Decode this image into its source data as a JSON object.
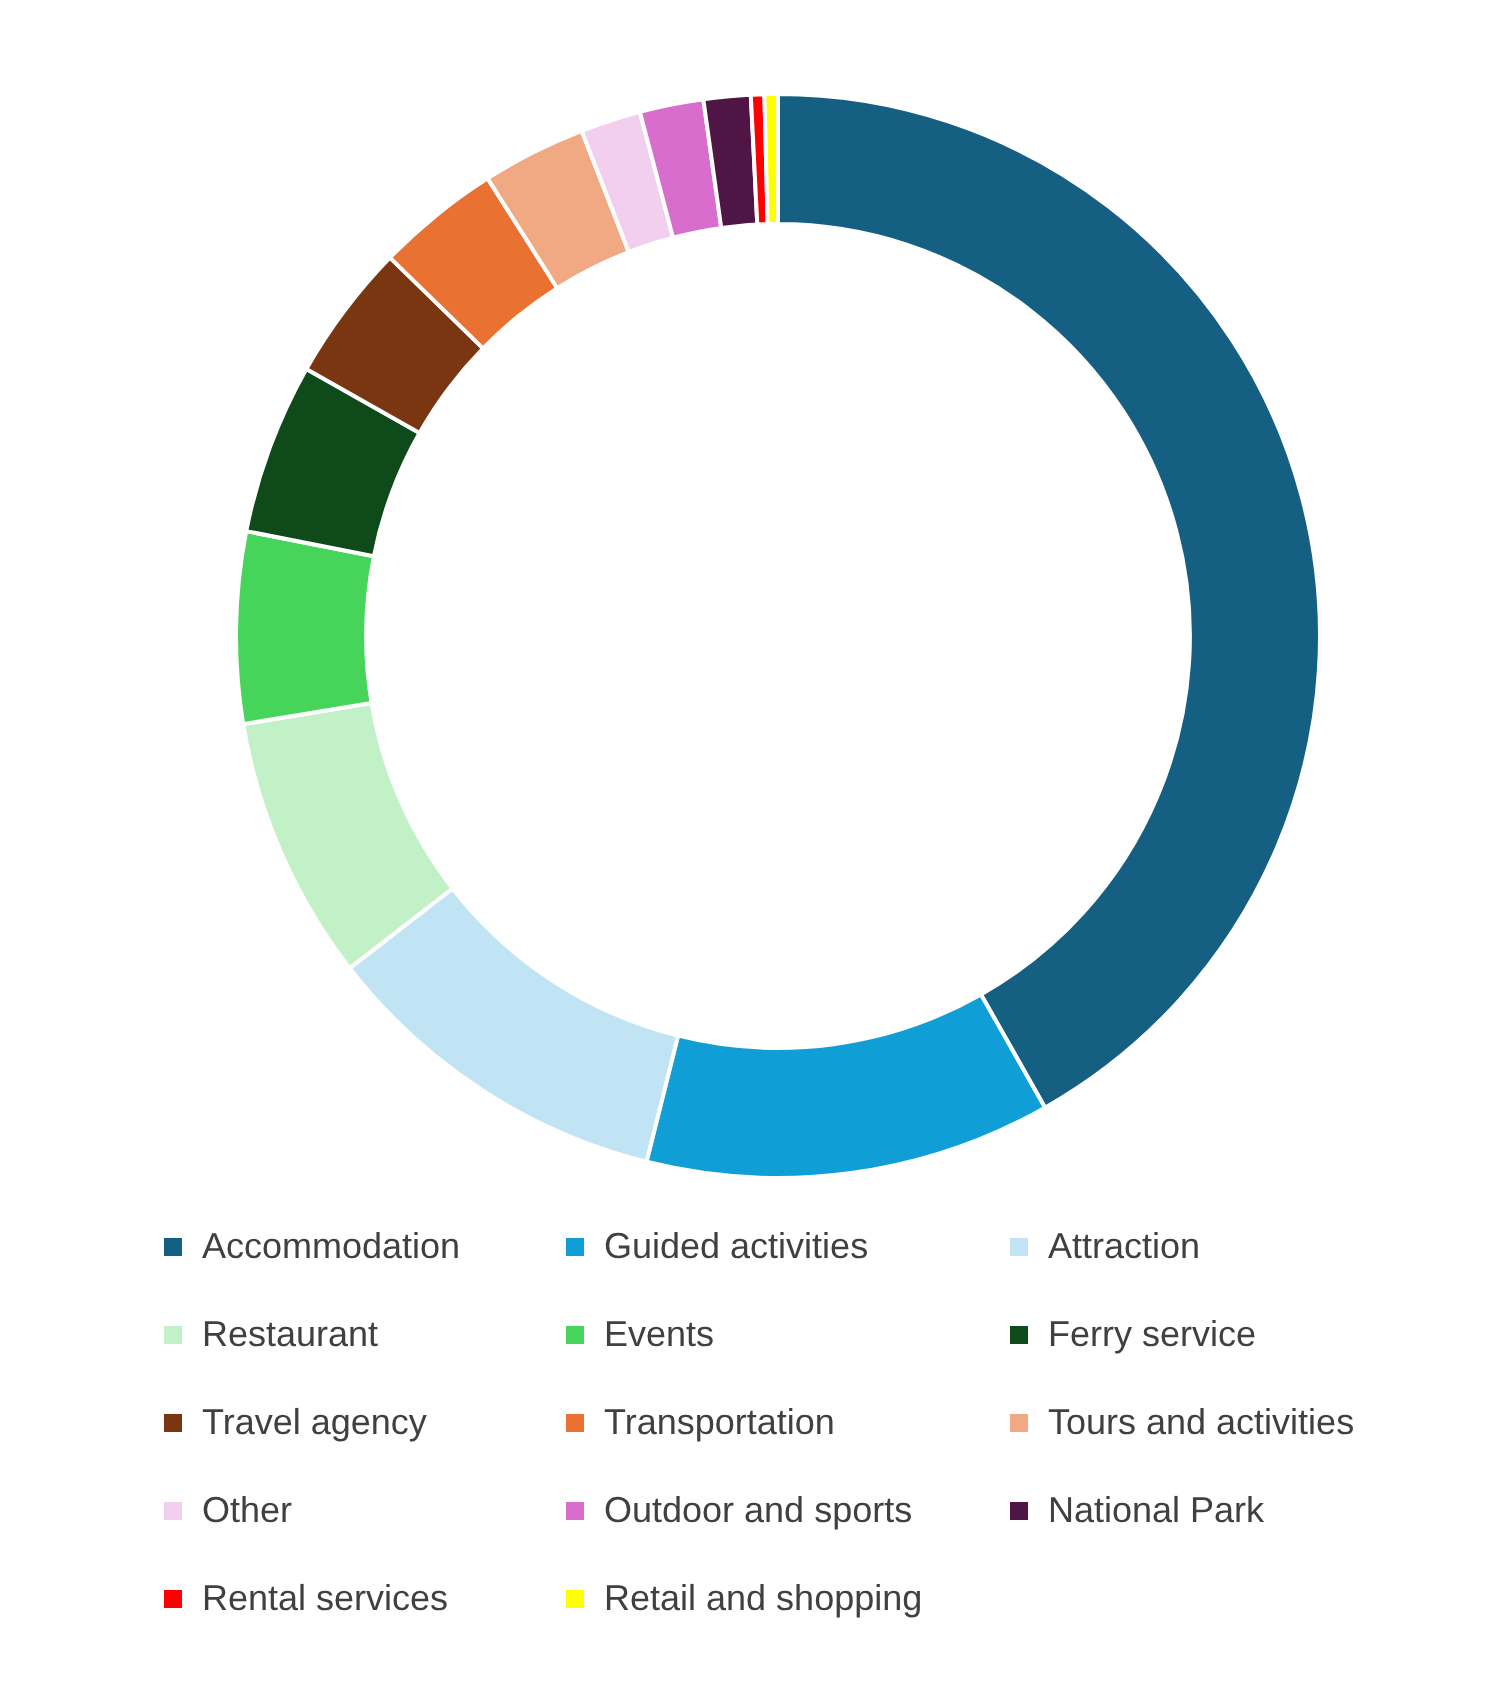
{
  "chart_data": {
    "type": "donut",
    "categories": [
      "Accommodation",
      "Guided activities",
      "Attraction",
      "Restaurant",
      "Events",
      "Ferry service",
      "Travel agency",
      "Transportation",
      "Tours and activities",
      "Other",
      "Outdoor and sports",
      "National Park",
      "Rental services",
      "Retail and shopping"
    ],
    "values": [
      41.8,
      12.1,
      10.6,
      7.9,
      5.7,
      5.1,
      4.1,
      3.7,
      3.1,
      1.8,
      1.9,
      1.4,
      0.4,
      0.4
    ],
    "colors": [
      "#156082",
      "#0f9ed5",
      "#c1e4f5",
      "#c2f1c8",
      "#47d45a",
      "#0e4a1a",
      "#7a3610",
      "#e97132",
      "#f1a983",
      "#f2ceef",
      "#d86dcd",
      "#4e1545",
      "#ff0000",
      "#ffff00"
    ],
    "legend": "bottom"
  }
}
